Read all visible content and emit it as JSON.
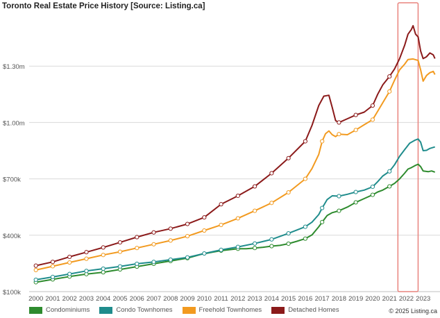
{
  "title": "Toronto Real Estate Price History [Source: Listing.ca]",
  "copyright": "© 2025 Listing.ca",
  "highlight_color": "#e8837d",
  "chart_data": {
    "type": "line",
    "title": "Toronto Real Estate Price History [Source: Listing.ca]",
    "xlabel": "",
    "ylabel": "",
    "xlim": [
      1999.6,
      2024.0
    ],
    "ylim": [
      100,
      1600
    ],
    "x_ticks": [
      2000,
      2001,
      2002,
      2003,
      2004,
      2005,
      2006,
      2007,
      2008,
      2009,
      2010,
      2011,
      2012,
      2013,
      2014,
      2015,
      2016,
      2017,
      2018,
      2019,
      2020,
      2021,
      2022,
      2023
    ],
    "x_tick_labels": [
      "2000",
      "2001",
      "2002",
      "2003",
      "2004",
      "2005",
      "2006",
      "2007",
      "2008",
      "2009",
      "2010",
      "2011",
      "2012",
      "2013",
      "2014",
      "2015",
      "2016",
      "2017",
      "2018",
      "2019",
      "2020",
      "2021",
      "2022",
      "2023"
    ],
    "y_ticks": [
      100,
      400,
      700,
      1000,
      1300
    ],
    "y_tick_labels": [
      "$100k",
      "$400k",
      "$700k",
      "$1.00m",
      "$1.30m"
    ],
    "grid": {
      "horizontal": true,
      "vertical": false
    },
    "legend_position": "bottom-left",
    "highlight_range": [
      2021.5,
      2022.7
    ],
    "series": [
      {
        "name": "Condominiums",
        "color": "#2e8b2e",
        "points": [
          [
            2000.0,
            150
          ],
          [
            2001.0,
            165
          ],
          [
            2002.0,
            180
          ],
          [
            2003.0,
            193
          ],
          [
            2004.0,
            203
          ],
          [
            2005.0,
            218
          ],
          [
            2006.0,
            233
          ],
          [
            2007.0,
            248
          ],
          [
            2008.0,
            263
          ],
          [
            2009.0,
            278
          ],
          [
            2009.8,
            298
          ],
          [
            2010.5,
            310
          ],
          [
            2011.0,
            318
          ],
          [
            2012.0,
            328
          ],
          [
            2012.5,
            328
          ],
          [
            2013.0,
            332
          ],
          [
            2013.5,
            336
          ],
          [
            2014.0,
            342
          ],
          [
            2014.5,
            346
          ],
          [
            2015.0,
            355
          ],
          [
            2015.5,
            368
          ],
          [
            2016.0,
            382
          ],
          [
            2016.4,
            402
          ],
          [
            2016.8,
            445
          ],
          [
            2017.0,
            470
          ],
          [
            2017.3,
            505
          ],
          [
            2017.6,
            520
          ],
          [
            2018.0,
            530
          ],
          [
            2018.5,
            550
          ],
          [
            2019.0,
            575
          ],
          [
            2019.5,
            595
          ],
          [
            2020.0,
            615
          ],
          [
            2020.3,
            630
          ],
          [
            2020.6,
            640
          ],
          [
            2021.0,
            660
          ],
          [
            2021.3,
            676
          ],
          [
            2021.6,
            700
          ],
          [
            2021.9,
            730
          ],
          [
            2022.1,
            752
          ],
          [
            2022.3,
            760
          ],
          [
            2022.5,
            770
          ],
          [
            2022.7,
            778
          ],
          [
            2022.85,
            765
          ],
          [
            2023.0,
            742
          ],
          [
            2023.3,
            738
          ],
          [
            2023.5,
            742
          ],
          [
            2023.7,
            736
          ]
        ]
      },
      {
        "name": "Condo Townhomes",
        "color": "#1f8c8c",
        "points": [
          [
            2000.0,
            163
          ],
          [
            2001.0,
            178
          ],
          [
            2002.0,
            194
          ],
          [
            2003.0,
            210
          ],
          [
            2004.0,
            222
          ],
          [
            2005.0,
            234
          ],
          [
            2006.0,
            248
          ],
          [
            2007.0,
            258
          ],
          [
            2008.0,
            270
          ],
          [
            2009.0,
            282
          ],
          [
            2010.0,
            303
          ],
          [
            2011.0,
            322
          ],
          [
            2012.0,
            338
          ],
          [
            2013.0,
            356
          ],
          [
            2014.0,
            378
          ],
          [
            2015.0,
            410
          ],
          [
            2016.0,
            445
          ],
          [
            2016.4,
            470
          ],
          [
            2016.8,
            510
          ],
          [
            2017.0,
            545
          ],
          [
            2017.3,
            590
          ],
          [
            2017.6,
            610
          ],
          [
            2018.0,
            608
          ],
          [
            2018.5,
            618
          ],
          [
            2019.0,
            630
          ],
          [
            2019.5,
            640
          ],
          [
            2020.0,
            658
          ],
          [
            2020.3,
            685
          ],
          [
            2020.6,
            715
          ],
          [
            2021.0,
            740
          ],
          [
            2021.3,
            775
          ],
          [
            2021.6,
            820
          ],
          [
            2021.9,
            855
          ],
          [
            2022.2,
            890
          ],
          [
            2022.5,
            905
          ],
          [
            2022.7,
            912
          ],
          [
            2022.85,
            895
          ],
          [
            2023.0,
            850
          ],
          [
            2023.2,
            852
          ],
          [
            2023.4,
            862
          ],
          [
            2023.7,
            870
          ]
        ]
      },
      {
        "name": "Freehold Townhomes",
        "color": "#f29a1f",
        "points": [
          [
            2000.0,
            215
          ],
          [
            2001.0,
            235
          ],
          [
            2002.0,
            255
          ],
          [
            2003.0,
            275
          ],
          [
            2004.0,
            295
          ],
          [
            2005.0,
            312
          ],
          [
            2006.0,
            332
          ],
          [
            2007.0,
            352
          ],
          [
            2008.0,
            372
          ],
          [
            2009.0,
            395
          ],
          [
            2010.0,
            425
          ],
          [
            2011.0,
            455
          ],
          [
            2012.0,
            490
          ],
          [
            2013.0,
            530
          ],
          [
            2014.0,
            572
          ],
          [
            2015.0,
            628
          ],
          [
            2016.0,
            700
          ],
          [
            2016.4,
            755
          ],
          [
            2016.8,
            830
          ],
          [
            2017.0,
            900
          ],
          [
            2017.2,
            940
          ],
          [
            2017.4,
            955
          ],
          [
            2017.6,
            935
          ],
          [
            2017.8,
            925
          ],
          [
            2018.0,
            938
          ],
          [
            2018.5,
            935
          ],
          [
            2019.0,
            960
          ],
          [
            2019.5,
            988
          ],
          [
            2020.0,
            1015
          ],
          [
            2020.3,
            1060
          ],
          [
            2020.6,
            1105
          ],
          [
            2021.0,
            1165
          ],
          [
            2021.3,
            1225
          ],
          [
            2021.6,
            1280
          ],
          [
            2021.9,
            1310
          ],
          [
            2022.1,
            1335
          ],
          [
            2022.4,
            1338
          ],
          [
            2022.7,
            1330
          ],
          [
            2022.85,
            1280
          ],
          [
            2023.0,
            1220
          ],
          [
            2023.2,
            1250
          ],
          [
            2023.4,
            1265
          ],
          [
            2023.6,
            1272
          ],
          [
            2023.7,
            1255
          ]
        ]
      },
      {
        "name": "Detached Homes",
        "color": "#8b1a1a",
        "points": [
          [
            2000.0,
            238
          ],
          [
            2001.0,
            258
          ],
          [
            2002.0,
            285
          ],
          [
            2003.0,
            310
          ],
          [
            2004.0,
            335
          ],
          [
            2005.0,
            362
          ],
          [
            2006.0,
            390
          ],
          [
            2007.0,
            415
          ],
          [
            2008.0,
            435
          ],
          [
            2009.0,
            460
          ],
          [
            2010.0,
            495
          ],
          [
            2010.5,
            530
          ],
          [
            2011.0,
            565
          ],
          [
            2012.0,
            610
          ],
          [
            2013.0,
            660
          ],
          [
            2014.0,
            730
          ],
          [
            2015.0,
            810
          ],
          [
            2016.0,
            900
          ],
          [
            2016.4,
            985
          ],
          [
            2016.8,
            1090
          ],
          [
            2017.1,
            1140
          ],
          [
            2017.4,
            1145
          ],
          [
            2017.6,
            1080
          ],
          [
            2017.8,
            1010
          ],
          [
            2018.0,
            1000
          ],
          [
            2018.5,
            1020
          ],
          [
            2019.0,
            1040
          ],
          [
            2019.5,
            1055
          ],
          [
            2020.0,
            1090
          ],
          [
            2020.3,
            1150
          ],
          [
            2020.6,
            1200
          ],
          [
            2021.0,
            1245
          ],
          [
            2021.3,
            1285
          ],
          [
            2021.6,
            1340
          ],
          [
            2021.9,
            1410
          ],
          [
            2022.1,
            1470
          ],
          [
            2022.3,
            1495
          ],
          [
            2022.4,
            1515
          ],
          [
            2022.55,
            1470
          ],
          [
            2022.7,
            1455
          ],
          [
            2022.85,
            1380
          ],
          [
            2023.0,
            1340
          ],
          [
            2023.2,
            1350
          ],
          [
            2023.4,
            1370
          ],
          [
            2023.6,
            1360
          ],
          [
            2023.7,
            1340
          ]
        ]
      }
    ]
  }
}
